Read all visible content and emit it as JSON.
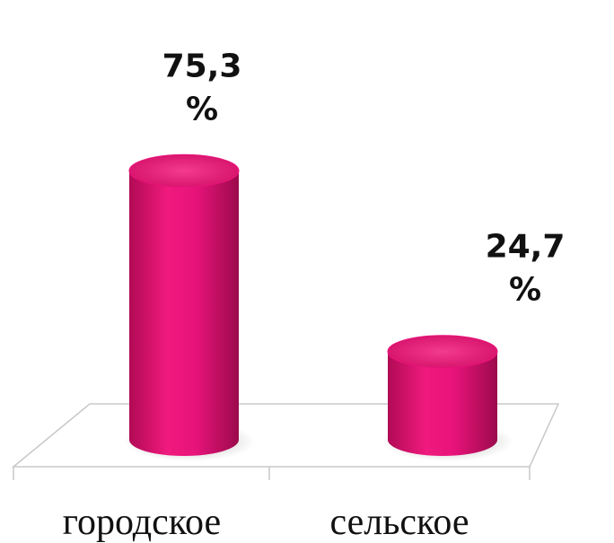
{
  "chart_data": {
    "type": "bar",
    "categories": [
      "городское",
      "сельское"
    ],
    "values": [
      75.3,
      24.7
    ],
    "value_labels": [
      "75,3 %",
      "24,7 %"
    ],
    "color": "#e8137a"
  }
}
